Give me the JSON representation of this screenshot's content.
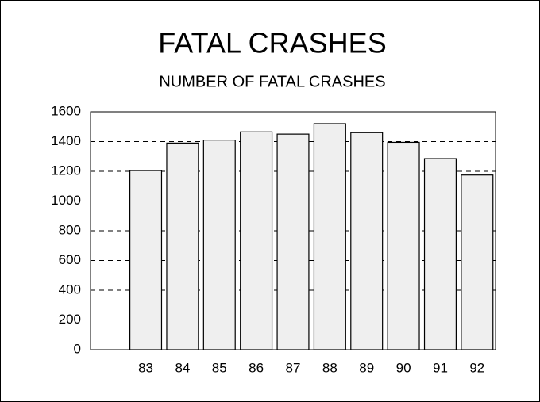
{
  "chart_data": {
    "type": "bar",
    "title": "FATAL CRASHES",
    "subtitle": "NUMBER OF FATAL CRASHES",
    "categories": [
      "83",
      "84",
      "85",
      "86",
      "87",
      "88",
      "89",
      "90",
      "91",
      "92"
    ],
    "values": [
      1205,
      1390,
      1410,
      1465,
      1450,
      1520,
      1460,
      1395,
      1285,
      1175
    ],
    "color": "#efefef",
    "ylim": [
      0,
      1600
    ],
    "yticks": [
      0,
      200,
      400,
      600,
      800,
      1000,
      1200,
      1400,
      1600
    ],
    "grid": true
  }
}
